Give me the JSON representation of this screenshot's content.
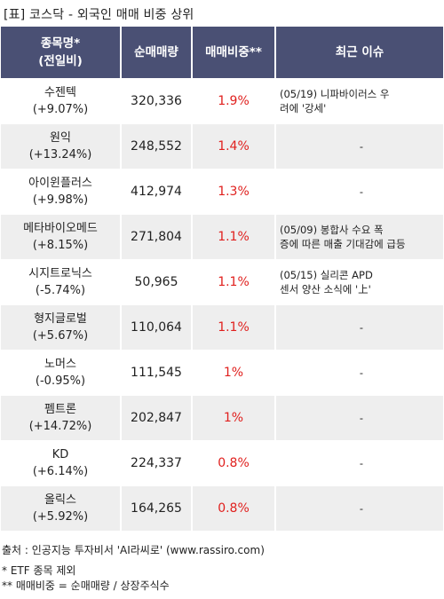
{
  "title": "[표] 코스닥 - 외국인 매매 비중 상위",
  "headers": {
    "name_line1": "종목명*",
    "name_line2": "(전일비)",
    "volume": "순매매량",
    "ratio": "매매비중**",
    "issue": "최근 이슈"
  },
  "rows": [
    {
      "name": "수젠텍",
      "change": "(+9.07%)",
      "volume": "320,336",
      "ratio": "1.9%",
      "issue1": "(05/19) 니파바이러스 우",
      "issue2": "려에 '강세'"
    },
    {
      "name": "원익",
      "change": "(+13.24%)",
      "volume": "248,552",
      "ratio": "1.4%",
      "issue1": "-",
      "issue2": ""
    },
    {
      "name": "아이윈플러스",
      "change": "(+9.98%)",
      "volume": "412,974",
      "ratio": "1.3%",
      "issue1": "-",
      "issue2": ""
    },
    {
      "name": "메타바이오메드",
      "change": "(+8.15%)",
      "volume": "271,804",
      "ratio": "1.1%",
      "issue1": "(05/09) 봉합사 수요 폭",
      "issue2": "증에 따른 매출 기대감에 급등"
    },
    {
      "name": "시지트로닉스",
      "change": "(-5.74%)",
      "volume": "50,965",
      "ratio": "1.1%",
      "issue1": "(05/15) 실리콘 APD",
      "issue2": "센서 양산 소식에 '上'"
    },
    {
      "name": "형지글로벌",
      "change": "(+5.67%)",
      "volume": "110,064",
      "ratio": "1.1%",
      "issue1": "-",
      "issue2": ""
    },
    {
      "name": "노머스",
      "change": "(-0.95%)",
      "volume": "111,545",
      "ratio": "1%",
      "issue1": "-",
      "issue2": ""
    },
    {
      "name": "펨트론",
      "change": "(+14.72%)",
      "volume": "202,847",
      "ratio": "1%",
      "issue1": "-",
      "issue2": ""
    },
    {
      "name": "KD",
      "change": "(+6.14%)",
      "volume": "224,337",
      "ratio": "0.8%",
      "issue1": "-",
      "issue2": ""
    },
    {
      "name": "올릭스",
      "change": "(+5.92%)",
      "volume": "164,265",
      "ratio": "0.8%",
      "issue1": "-",
      "issue2": ""
    }
  ],
  "footer": {
    "source": "출처 : 인공지능 투자비서 'AI라씨로' (www.rassiro.com)",
    "note1": "* ETF 종목 제외",
    "note2": "** 매매비중 = 순매매량 / 상장주식수"
  },
  "colors": {
    "header_bg": "#4a5074",
    "ratio_text": "#e0201e",
    "stripe": "#eeeeee"
  }
}
